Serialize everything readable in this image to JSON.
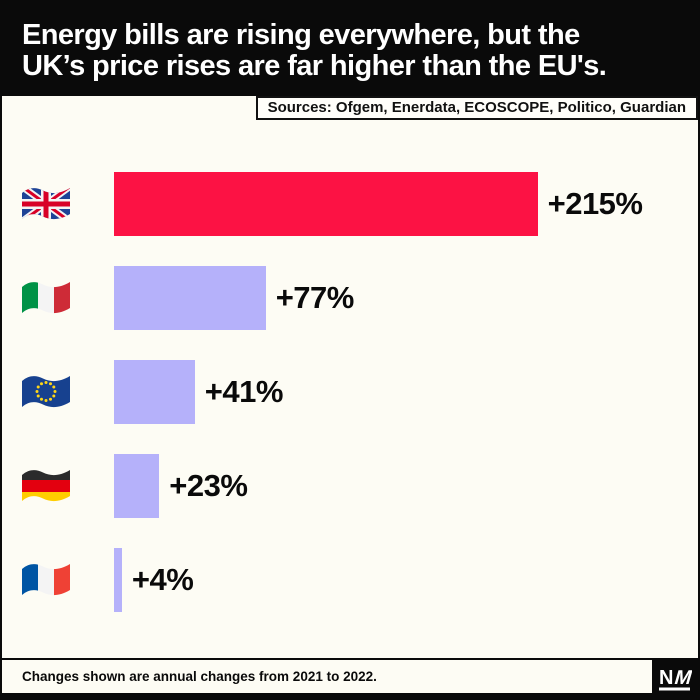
{
  "header": {
    "title_lines": {
      "0": "Energy bills are rising everywhere, but the",
      "1": "UK’s price rises are far higher than the EU's."
    }
  },
  "sources": {
    "label": "Sources: Ofgem, Enerdata, ECOSCOPE, Politico, Guardian"
  },
  "footer": {
    "note": "Changes shown are annual changes from 2021 to 2022.",
    "logo_text": "NM"
  },
  "colors": {
    "highlight_bar": "#FC1244",
    "default_bar": "#B5B1FA",
    "background": "#FDFCF4",
    "header_bg": "#0A0A0A"
  },
  "chart_data": {
    "type": "bar",
    "orientation": "horizontal",
    "unit": "percent annual change",
    "title": "Energy bills are rising everywhere, but the UK’s price rises are far higher than the EU's.",
    "note": "Changes shown are annual changes from 2021 to 2022.",
    "sources": "Ofgem, Enerdata, ECOSCOPE, Politico, Guardian",
    "xlim": [
      0,
      230
    ],
    "grid": false,
    "legend": "none",
    "categories": [
      "United Kingdom",
      "Italy",
      "European Union",
      "Germany",
      "France"
    ],
    "values": [
      215,
      77,
      41,
      23,
      4
    ],
    "rows": [
      {
        "country": "United Kingdom",
        "flag": "uk-flag",
        "value": 215,
        "label": "+215%",
        "color": "#FC1244"
      },
      {
        "country": "Italy",
        "flag": "italy-flag",
        "value": 77,
        "label": "+77%",
        "color": "#B5B1FA"
      },
      {
        "country": "European Union",
        "flag": "eu-flag",
        "value": 41,
        "label": "+41%",
        "color": "#B5B1FA"
      },
      {
        "country": "Germany",
        "flag": "germany-flag",
        "value": 23,
        "label": "+23%",
        "color": "#B5B1FA"
      },
      {
        "country": "France",
        "flag": "france-flag",
        "value": 4,
        "label": "+4%",
        "color": "#B5B1FA"
      }
    ]
  }
}
